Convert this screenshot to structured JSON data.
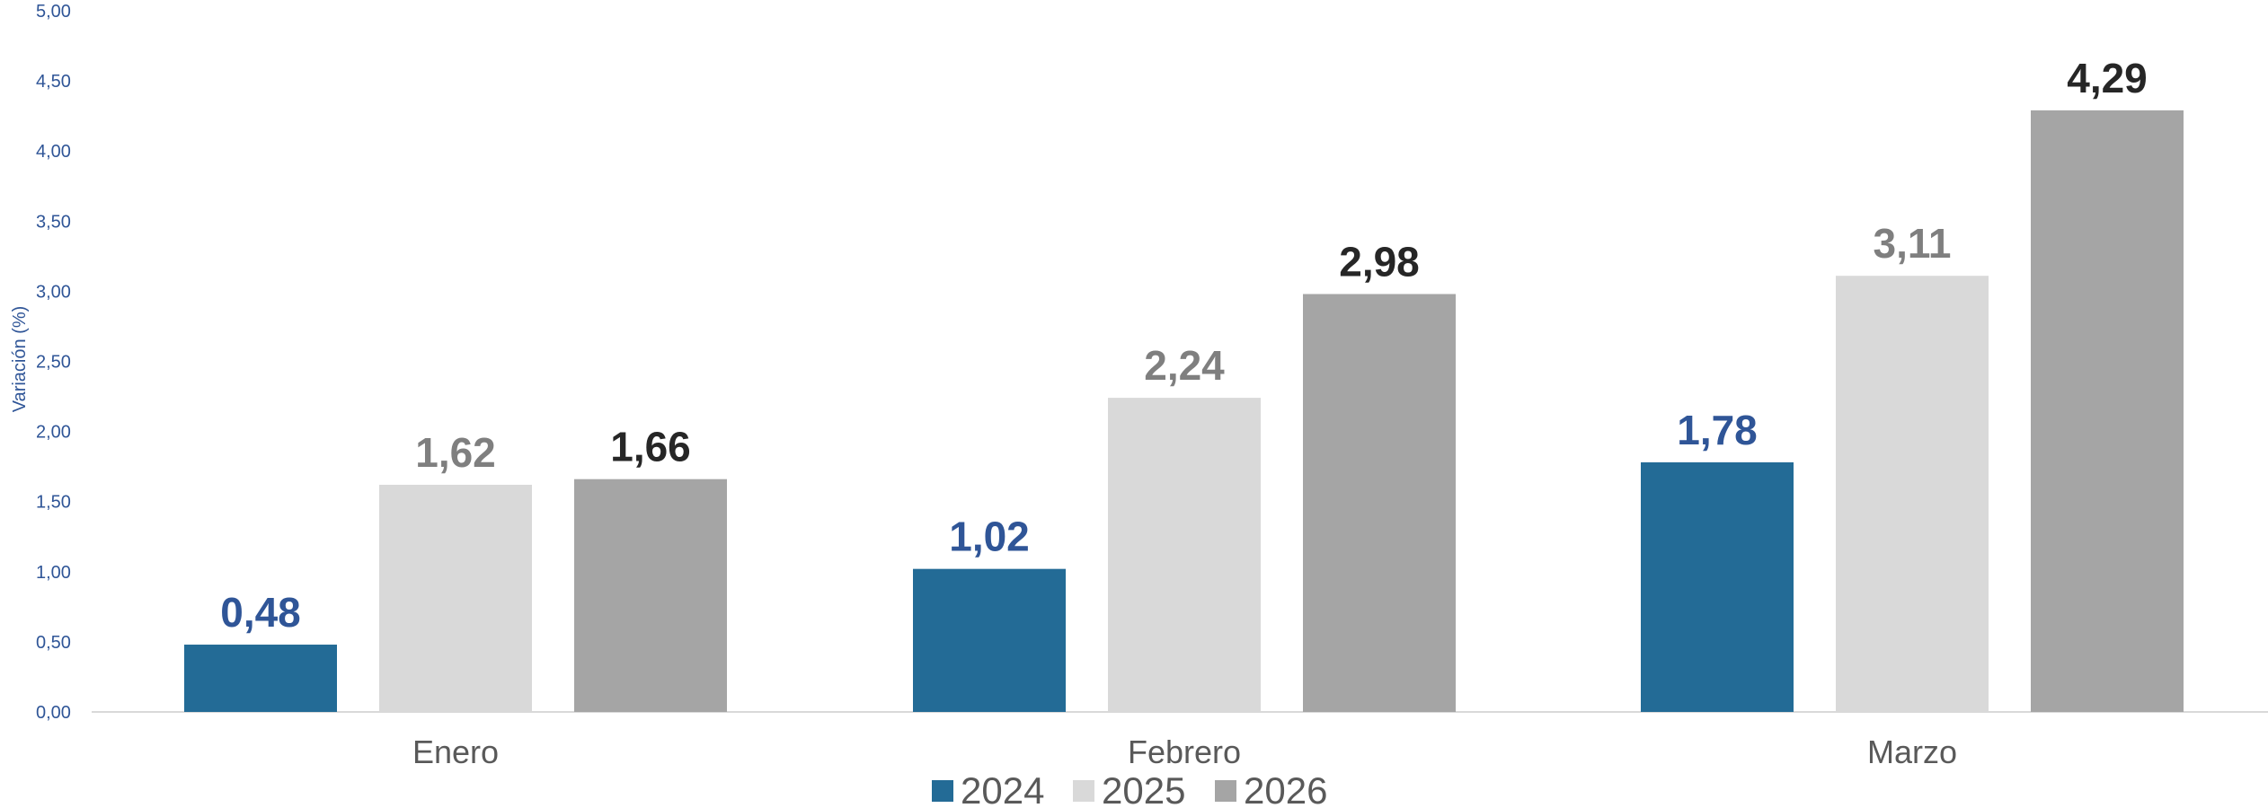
{
  "chart_data": {
    "type": "bar",
    "ylabel": "Variación (%)",
    "ylim": [
      0,
      5
    ],
    "yticks": [
      "0,00",
      "0,50",
      "1,00",
      "1,50",
      "2,00",
      "2,50",
      "3,00",
      "3,50",
      "4,00",
      "4,50",
      "5,00"
    ],
    "categories": [
      "Enero",
      "Febrero",
      "Marzo"
    ],
    "series": [
      {
        "name": "2024",
        "values": [
          0.48,
          1.02,
          1.78
        ],
        "labels": [
          "0,48",
          "1,02",
          "1,78"
        ],
        "color": "#236b96",
        "label_color": "#2f5597"
      },
      {
        "name": "2025",
        "values": [
          1.62,
          2.24,
          3.11
        ],
        "labels": [
          "1,62",
          "2,24",
          "3,11"
        ],
        "color": "#d9d9d9",
        "label_color": "#7f7f7f"
      },
      {
        "name": "2026",
        "values": [
          1.66,
          2.98,
          4.29
        ],
        "labels": [
          "1,66",
          "2,98",
          "4,29"
        ],
        "color": "#a5a5a5",
        "label_color": "#262626"
      }
    ],
    "grid": false,
    "legend": "bottom-center"
  }
}
